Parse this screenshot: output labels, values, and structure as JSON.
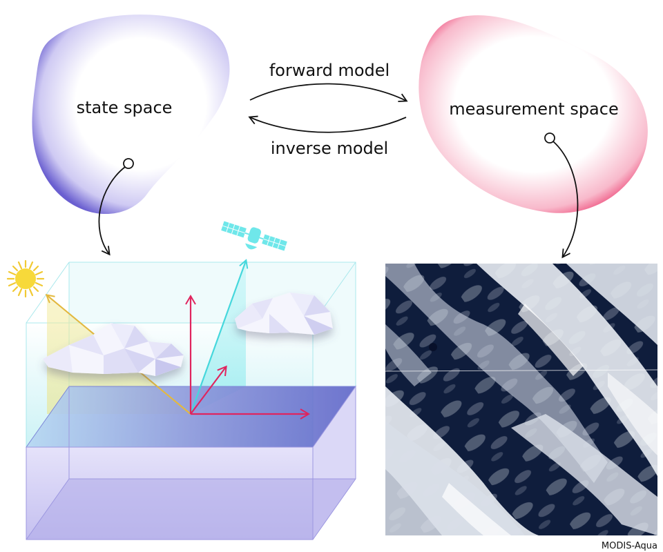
{
  "labels": {
    "state_space": "state space",
    "measurement_space": "measurement space",
    "forward_model": "forward model",
    "inverse_model": "inverse model",
    "image_credit": "MODIS-Aqua"
  },
  "colors": {
    "state_space_edge": "#6a5fd0",
    "measurement_space_edge": "#ec3a6e",
    "vector_red": "#e0245e",
    "sun_ray": "#e9c24a",
    "satellite": "#5fe3e6",
    "atmosphere_box": "#bfeff3",
    "surface": "#6f78cf",
    "ground_box": "#c4c0f0"
  },
  "icons": {
    "sun": "sun-icon",
    "satellite": "satellite-icon",
    "cloud": "cloud-icon"
  }
}
